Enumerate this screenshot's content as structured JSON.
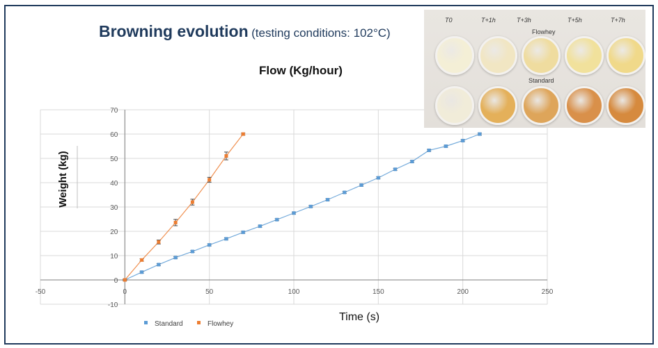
{
  "header": {
    "title": "Browning evolution",
    "subtitle": "(testing conditions: 102°C)"
  },
  "photo": {
    "time_labels": [
      "T0",
      "T+1h",
      "T+3h",
      "T+5h",
      "T+7h"
    ],
    "row_labels": [
      "Flowhey",
      "Standard"
    ],
    "colors": {
      "flowhey": [
        "#f4efd6",
        "#f1e6c3",
        "#efdc9f",
        "#f1e19c",
        "#f0d98a"
      ],
      "standard": [
        "#f1ecd9",
        "#e4b05a",
        "#dea55a",
        "#d9904a",
        "#d68a3e"
      ]
    }
  },
  "chart_data": {
    "type": "scatter",
    "title": "Flow (Kg/hour)",
    "xlabel": "Time (s)",
    "ylabel": "Weight (kg)",
    "xlim": [
      -50,
      250
    ],
    "ylim": [
      -10,
      70
    ],
    "xticks": [
      -50,
      0,
      50,
      100,
      150,
      200,
      250
    ],
    "yticks": [
      -10,
      0,
      10,
      20,
      30,
      40,
      50,
      60,
      70
    ],
    "grid": true,
    "legend_position": "bottom-left",
    "series": [
      {
        "name": "Standard",
        "color": "#5b9bd5",
        "x": [
          0,
          10,
          20,
          30,
          40,
          50,
          60,
          70,
          80,
          90,
          100,
          110,
          120,
          130,
          140,
          150,
          160,
          170,
          180,
          190,
          200,
          210
        ],
        "y": [
          0,
          3.2,
          6.3,
          9.2,
          11.7,
          14.4,
          16.9,
          19.6,
          22.1,
          24.8,
          27.5,
          30.2,
          33.0,
          36.0,
          39.0,
          42.0,
          45.5,
          48.7,
          53.3,
          55.0,
          57.3,
          60.0
        ],
        "err": [
          0.3,
          0.4,
          0.4,
          0.4,
          0.4,
          0.4,
          0.4,
          0.4,
          0.4,
          0.4,
          0.4,
          0.4,
          0.4,
          0.4,
          0.4,
          0.4,
          0.4,
          0.4,
          0.4,
          0.4,
          0.4,
          0.4
        ]
      },
      {
        "name": "Flowhey",
        "color": "#ed7d31",
        "x": [
          0,
          10,
          20,
          30,
          40,
          50,
          60,
          70
        ],
        "y": [
          0,
          8.2,
          15.6,
          23.6,
          32.0,
          41.2,
          51.0,
          60.0
        ],
        "err": [
          0.3,
          0.5,
          0.8,
          1.3,
          1.2,
          1.0,
          1.6,
          0.4
        ]
      }
    ]
  }
}
